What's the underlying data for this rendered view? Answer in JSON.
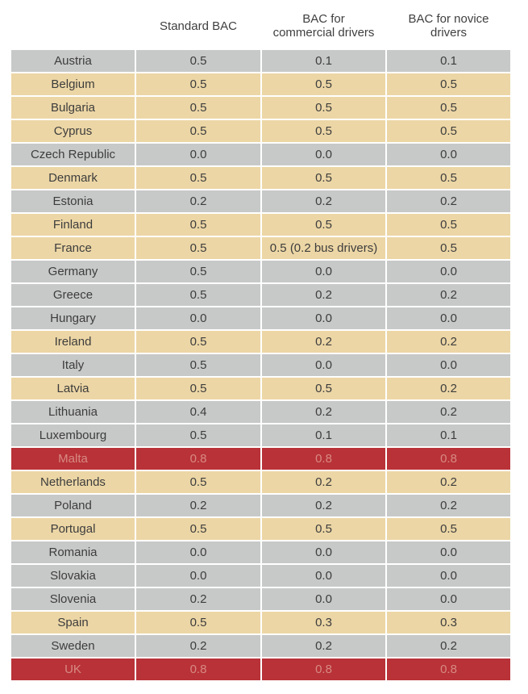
{
  "chart_data": {
    "type": "table",
    "title": "",
    "columns": [
      "",
      "Standard BAC",
      "BAC for commercial drivers",
      "BAC for novice drivers"
    ],
    "header_lines": {
      "standard": [
        "Standard BAC"
      ],
      "commercial": [
        "BAC for",
        "commercial drivers"
      ],
      "novice": [
        "BAC for novice",
        "drivers"
      ]
    },
    "colors": {
      "grey": "#c7c8c8",
      "tan": "#ecd6a5",
      "red": "#b83238",
      "red_text": "#d88a83"
    },
    "rows": [
      {
        "country": "Austria",
        "standard": "0.5",
        "commercial": "0.1",
        "novice": "0.1",
        "band": "grey"
      },
      {
        "country": "Belgium",
        "standard": "0.5",
        "commercial": "0.5",
        "novice": "0.5",
        "band": "tan"
      },
      {
        "country": "Bulgaria",
        "standard": "0.5",
        "commercial": "0.5",
        "novice": "0.5",
        "band": "tan"
      },
      {
        "country": "Cyprus",
        "standard": "0.5",
        "commercial": "0.5",
        "novice": "0.5",
        "band": "tan"
      },
      {
        "country": "Czech Republic",
        "standard": "0.0",
        "commercial": "0.0",
        "novice": "0.0",
        "band": "grey"
      },
      {
        "country": "Denmark",
        "standard": "0.5",
        "commercial": "0.5",
        "novice": "0.5",
        "band": "tan"
      },
      {
        "country": "Estonia",
        "standard": "0.2",
        "commercial": "0.2",
        "novice": "0.2",
        "band": "grey"
      },
      {
        "country": "Finland",
        "standard": "0.5",
        "commercial": "0.5",
        "novice": "0.5",
        "band": "tan"
      },
      {
        "country": "France",
        "standard": "0.5",
        "commercial": "0.5 (0.2 bus drivers)",
        "novice": "0.5",
        "band": "tan"
      },
      {
        "country": "Germany",
        "standard": "0.5",
        "commercial": "0.0",
        "novice": "0.0",
        "band": "grey"
      },
      {
        "country": "Greece",
        "standard": "0.5",
        "commercial": "0.2",
        "novice": "0.2",
        "band": "grey"
      },
      {
        "country": "Hungary",
        "standard": "0.0",
        "commercial": "0.0",
        "novice": "0.0",
        "band": "grey"
      },
      {
        "country": "Ireland",
        "standard": "0.5",
        "commercial": "0.2",
        "novice": "0.2",
        "band": "tan"
      },
      {
        "country": "Italy",
        "standard": "0.5",
        "commercial": "0.0",
        "novice": "0.0",
        "band": "grey"
      },
      {
        "country": "Latvia",
        "standard": "0.5",
        "commercial": "0.5",
        "novice": "0.2",
        "band": "tan"
      },
      {
        "country": "Lithuania",
        "standard": "0.4",
        "commercial": "0.2",
        "novice": "0.2",
        "band": "grey"
      },
      {
        "country": "Luxembourg",
        "standard": "0.5",
        "commercial": "0.1",
        "novice": "0.1",
        "band": "grey"
      },
      {
        "country": "Malta",
        "standard": "0.8",
        "commercial": "0.8",
        "novice": "0.8",
        "band": "red"
      },
      {
        "country": "Netherlands",
        "standard": "0.5",
        "commercial": "0.2",
        "novice": "0.2",
        "band": "tan"
      },
      {
        "country": "Poland",
        "standard": "0.2",
        "commercial": "0.2",
        "novice": "0.2",
        "band": "grey"
      },
      {
        "country": "Portugal",
        "standard": "0.5",
        "commercial": "0.5",
        "novice": "0.5",
        "band": "tan"
      },
      {
        "country": "Romania",
        "standard": "0.0",
        "commercial": "0.0",
        "novice": "0.0",
        "band": "grey"
      },
      {
        "country": "Slovakia",
        "standard": "0.0",
        "commercial": "0.0",
        "novice": "0.0",
        "band": "grey"
      },
      {
        "country": "Slovenia",
        "standard": "0.2",
        "commercial": "0.0",
        "novice": "0.0",
        "band": "grey"
      },
      {
        "country": "Spain",
        "standard": "0.5",
        "commercial": "0.3",
        "novice": "0.3",
        "band": "tan"
      },
      {
        "country": "Sweden",
        "standard": "0.2",
        "commercial": "0.2",
        "novice": "0.2",
        "band": "grey"
      },
      {
        "country": "UK",
        "standard": "0.8",
        "commercial": "0.8",
        "novice": "0.8",
        "band": "red"
      }
    ]
  }
}
